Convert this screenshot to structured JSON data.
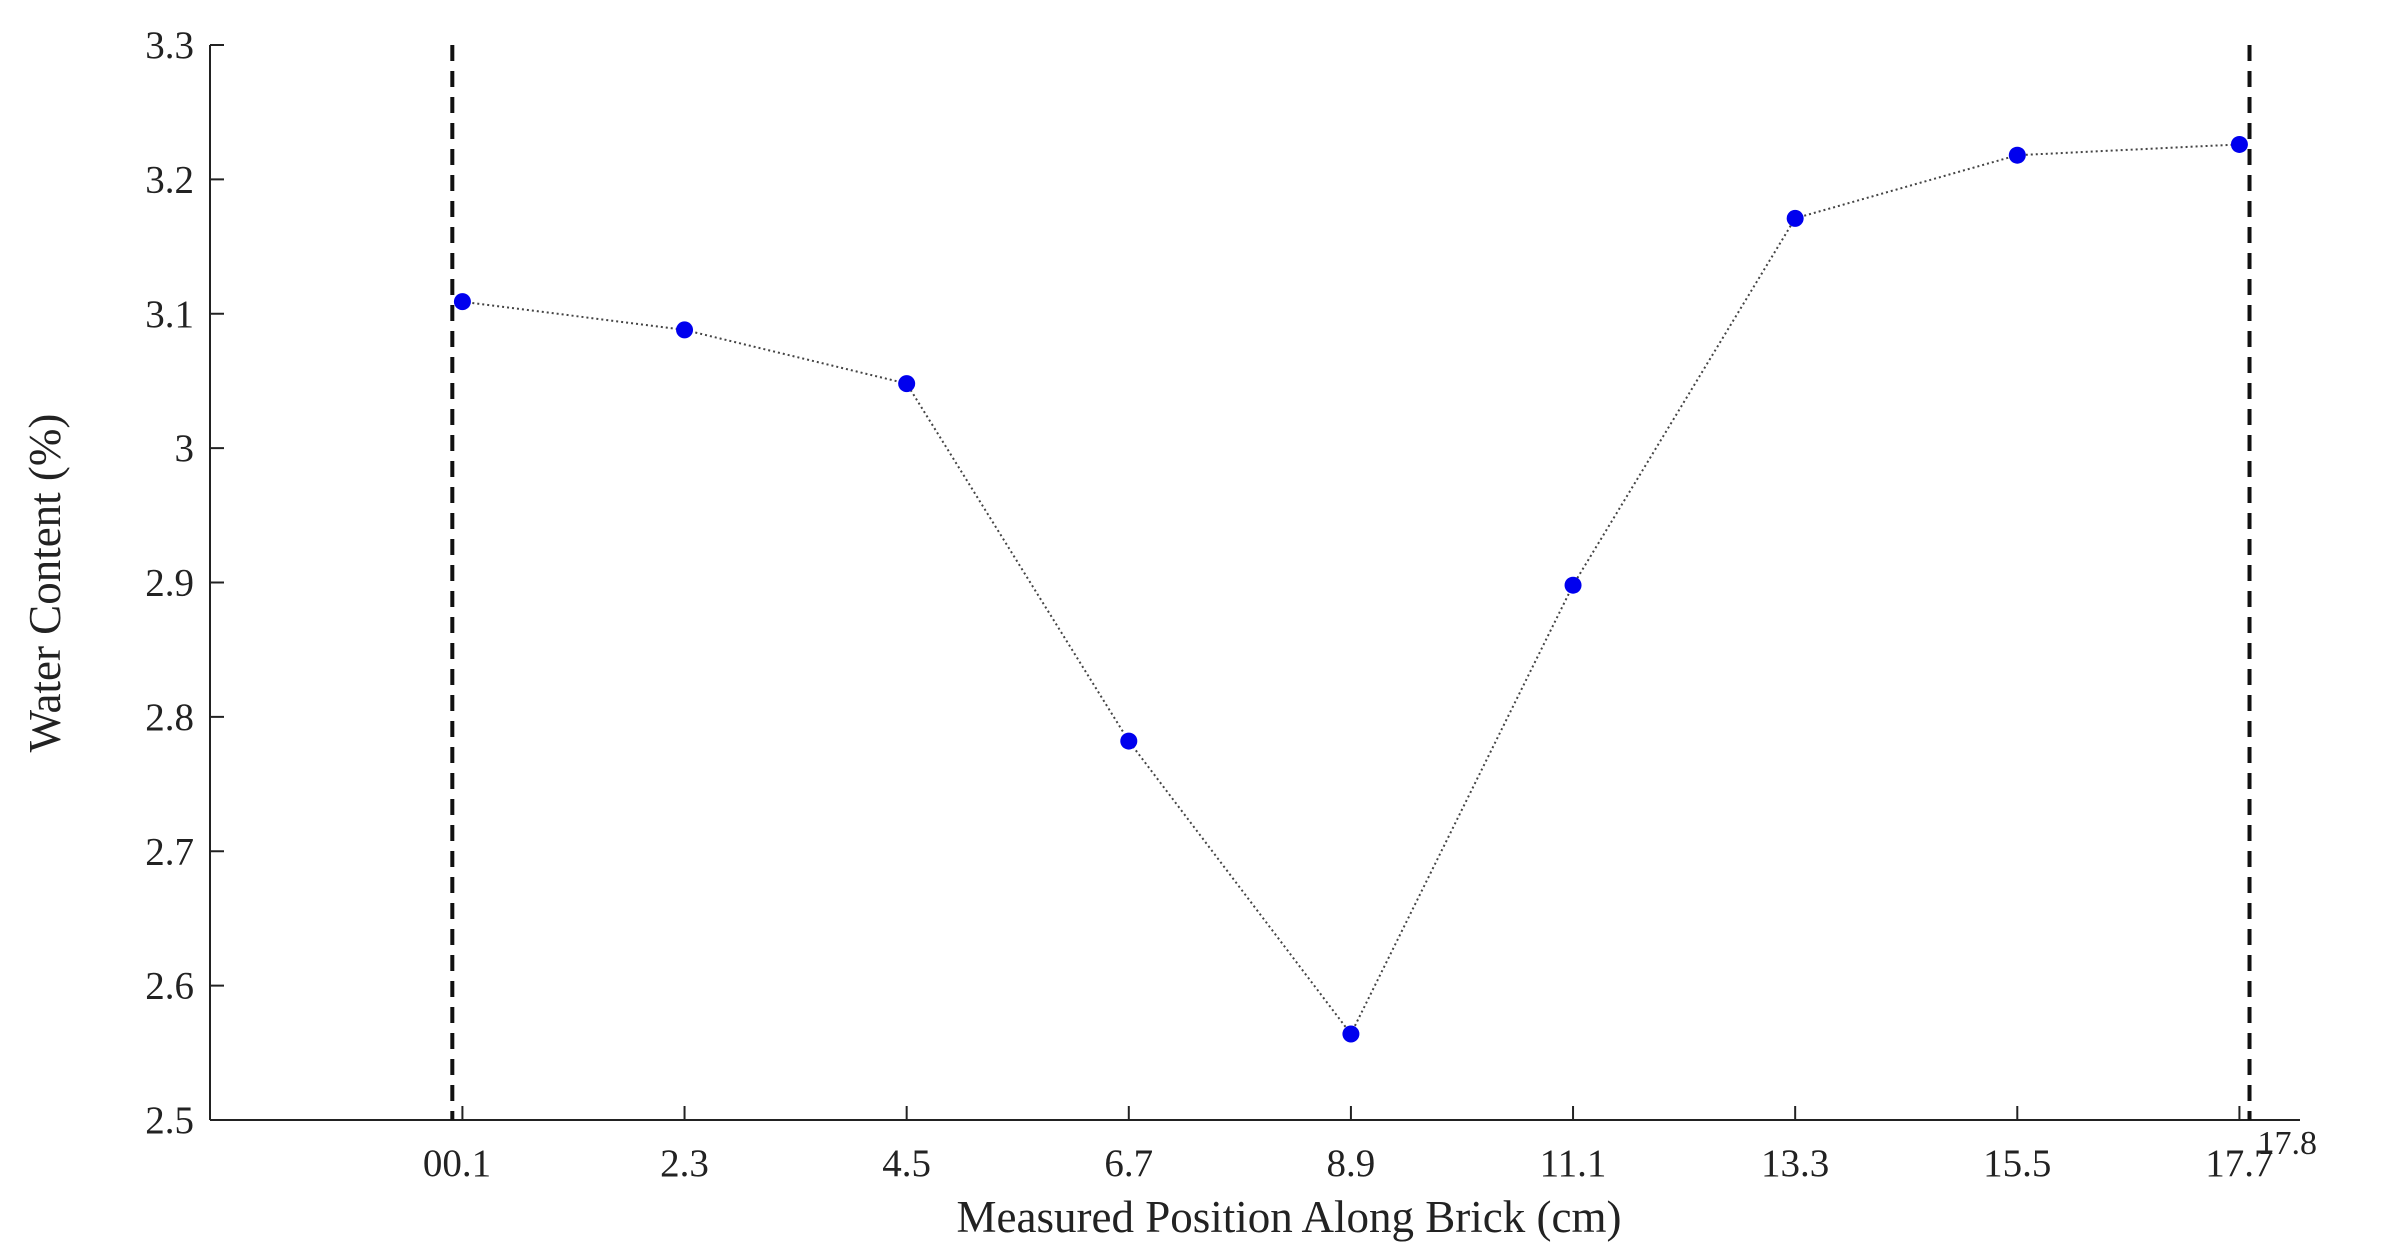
{
  "chart_data": {
    "type": "line",
    "xlabel": "Measured Position Along Brick (cm)",
    "ylabel": "Water Content (%)",
    "xlim": [
      -2.4,
      18.3
    ],
    "ylim": [
      2.5,
      3.3
    ],
    "x_ticks": [
      "0",
      "0.1",
      "2.3",
      "4.5",
      "6.7",
      "8.9",
      "11.1",
      "13.3",
      "15.5",
      "17.7"
    ],
    "x_tick_values": [
      0,
      0.1,
      2.3,
      4.5,
      6.7,
      8.9,
      11.1,
      13.3,
      15.5,
      17.7
    ],
    "y_ticks": [
      "2.5",
      "2.6",
      "2.7",
      "2.8",
      "2.9",
      "3",
      "3.1",
      "3.2",
      "3.3"
    ],
    "y_tick_values": [
      2.5,
      2.6,
      2.7,
      2.8,
      2.9,
      3.0,
      3.1,
      3.2,
      3.3
    ],
    "boundary_lines": [
      {
        "x": 0,
        "label": ""
      },
      {
        "x": 17.8,
        "label": "17.8"
      }
    ],
    "series": [
      {
        "x": [
          0.1,
          2.3,
          4.5,
          6.7,
          8.9,
          11.1,
          13.3,
          15.5,
          17.7
        ],
        "y": [
          3.109,
          3.088,
          3.048,
          2.782,
          2.564,
          2.898,
          3.171,
          3.218,
          3.226
        ],
        "color": "#0000ee",
        "line_color": "#444444",
        "line_style": "dotted"
      }
    ],
    "grid": false
  }
}
